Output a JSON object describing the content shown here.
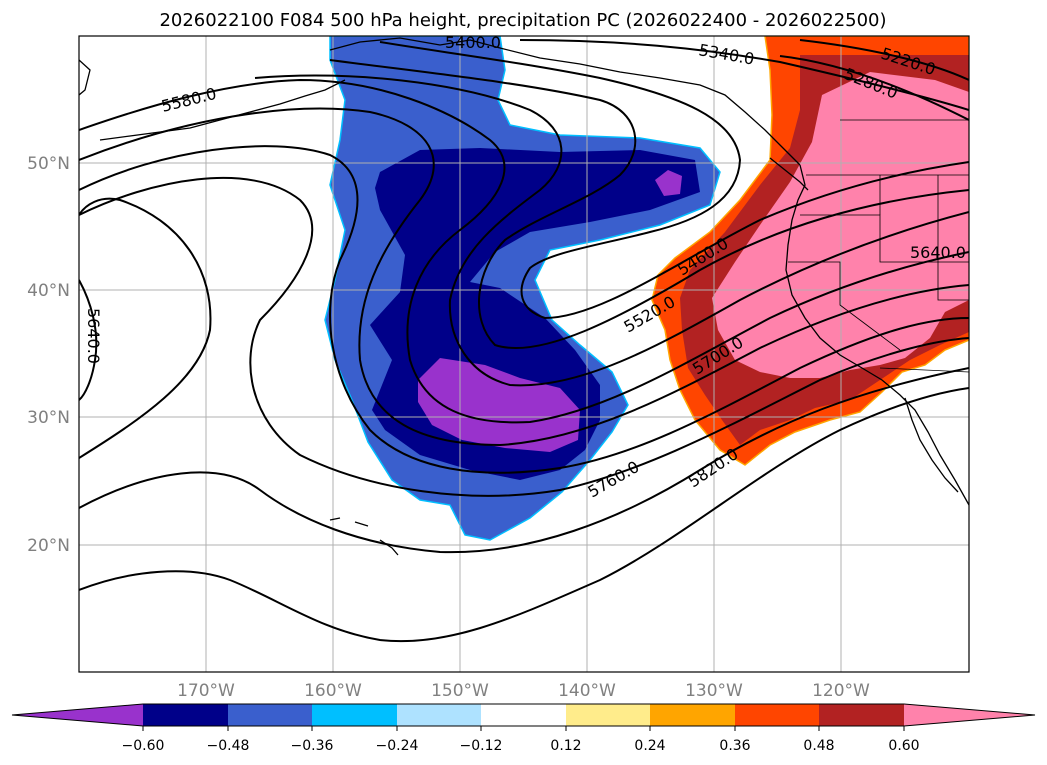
{
  "title": "2026022100 F084 500 hPa height, precipitation PC (2026022400 - 2026022500)",
  "map": {
    "lat_labels": [
      "50°N",
      "40°N",
      "30°N",
      "20°N"
    ],
    "lon_labels": [
      "170°W",
      "160°W",
      "150°W",
      "140°W",
      "130°W",
      "120°W"
    ]
  },
  "contour_labels": {
    "c5400": "5400.0",
    "c5340": "5340.0",
    "c5220": "5220.0",
    "c5280": "5280.0",
    "c5580": "5580.0",
    "c5460": "5460.0",
    "c5640_east": "5640.0",
    "c5520": "5520.0",
    "c5700": "5700.0",
    "c5640_west": "5640.0",
    "c5760": "5760.0",
    "c5820": "5820.0"
  },
  "colorbar": {
    "ticks": [
      "−0.60",
      "−0.48",
      "−0.36",
      "−0.24",
      "−0.12",
      "0.12",
      "0.24",
      "0.36",
      "0.48",
      "0.60"
    ],
    "colors": [
      "#9932cc",
      "#000089",
      "#3a5fcd",
      "#00bfff",
      "#aee2ff",
      "#ffffff",
      "#ffec8b",
      "#ffa500",
      "#ff4500",
      "#b22222",
      "#ff82ab"
    ]
  },
  "colors": {
    "neg_1": "#9932cc",
    "neg_2": "#000089",
    "neg_3": "#3a5fcd",
    "neg_4": "#00bfff",
    "pos_1": "#ffec8b",
    "pos_2": "#ffa500",
    "pos_3": "#ff4500",
    "pos_4": "#b22222",
    "pos_5": "#ff82ab"
  }
}
